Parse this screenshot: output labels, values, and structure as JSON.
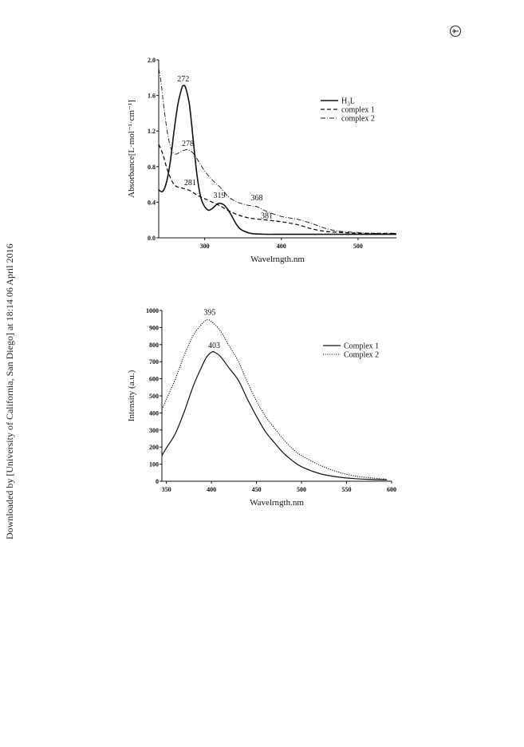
{
  "sidebar": {
    "download_note": "Downloaded by [University of California, San Diego] at 18:14 06 April 2016"
  },
  "header": {
    "logo_icon": "journal-logo-icon"
  },
  "chart_data": [
    {
      "type": "line",
      "ylabel": "Absorbance[L·mol⁻¹·cm⁻¹]",
      "xlabel": "Wavelrngth.nm",
      "xlim": [
        240,
        550
      ],
      "ylim": [
        0,
        2.0
      ],
      "xticks": [
        300,
        400,
        500
      ],
      "yticks": [
        0.0,
        0.4,
        0.8,
        1.2,
        1.6,
        2.0
      ],
      "ytick_labels": [
        "0.0",
        "0.4",
        "0.8",
        "1.2",
        "1.6",
        "2.0"
      ],
      "grid": false,
      "legend_position": "top-right",
      "series": [
        {
          "name": "H3L",
          "legend_main": "H",
          "legend_sub": "3",
          "legend_tail": "L",
          "style": "solid",
          "x": [
            240,
            245,
            250,
            255,
            260,
            265,
            270,
            272,
            275,
            280,
            285,
            290,
            295,
            300,
            305,
            310,
            315,
            319,
            325,
            330,
            335,
            340,
            345,
            350,
            360,
            380,
            400,
            450,
            500,
            550
          ],
          "y": [
            0.54,
            0.52,
            0.62,
            0.85,
            1.2,
            1.5,
            1.68,
            1.71,
            1.69,
            1.5,
            1.1,
            0.7,
            0.45,
            0.35,
            0.31,
            0.33,
            0.37,
            0.39,
            0.37,
            0.32,
            0.25,
            0.17,
            0.11,
            0.08,
            0.05,
            0.04,
            0.04,
            0.04,
            0.04,
            0.04
          ]
        },
        {
          "name": "complex 1",
          "legend_main": "complex 1",
          "style": "dashed",
          "x": [
            240,
            245,
            250,
            255,
            260,
            265,
            270,
            281,
            290,
            300,
            310,
            320,
            330,
            340,
            350,
            360,
            370,
            381,
            400,
            420,
            440,
            460,
            480,
            500,
            520,
            550
          ],
          "y": [
            1.05,
            0.95,
            0.8,
            0.68,
            0.6,
            0.57,
            0.56,
            0.53,
            0.48,
            0.44,
            0.4,
            0.36,
            0.31,
            0.27,
            0.24,
            0.22,
            0.21,
            0.2,
            0.18,
            0.15,
            0.1,
            0.07,
            0.06,
            0.05,
            0.05,
            0.05
          ]
        },
        {
          "name": "complex 2",
          "legend_main": "complex 2",
          "style": "dashdot",
          "x": [
            240,
            243,
            247,
            252,
            257,
            262,
            267,
            272,
            278,
            285,
            292,
            300,
            310,
            320,
            330,
            340,
            350,
            360,
            368,
            380,
            400,
            420,
            440,
            460,
            480,
            500,
            520,
            550
          ],
          "y": [
            1.9,
            1.75,
            1.45,
            1.15,
            0.98,
            0.94,
            0.96,
            0.98,
            0.99,
            0.95,
            0.86,
            0.75,
            0.65,
            0.57,
            0.47,
            0.41,
            0.38,
            0.36,
            0.35,
            0.3,
            0.24,
            0.21,
            0.16,
            0.1,
            0.07,
            0.06,
            0.05,
            0.05
          ]
        }
      ],
      "annotations": [
        {
          "text": "272",
          "x": 272,
          "y": 1.76
        },
        {
          "text": "278",
          "x": 278,
          "y": 1.03
        },
        {
          "text": "281",
          "x": 281,
          "y": 0.59
        },
        {
          "text": "319",
          "x": 319,
          "y": 0.45
        },
        {
          "text": "368",
          "x": 368,
          "y": 0.42
        },
        {
          "text": "381",
          "x": 381,
          "y": 0.22
        }
      ]
    },
    {
      "type": "line",
      "ylabel": "Intensity (a.u.)",
      "xlabel": "Wavelrngth.nm",
      "xlim": [
        345,
        600
      ],
      "ylim": [
        0,
        1000
      ],
      "xticks": [
        350,
        400,
        450,
        500,
        550,
        600
      ],
      "yticks": [
        0,
        100,
        200,
        300,
        400,
        500,
        600,
        700,
        800,
        900,
        1000
      ],
      "grid": false,
      "legend_position": "top-right",
      "series": [
        {
          "name": "Complex 1",
          "legend_main": "Complex 1",
          "style": "solid",
          "x": [
            345,
            350,
            360,
            370,
            380,
            390,
            395,
            400,
            403,
            410,
            420,
            430,
            440,
            450,
            460,
            470,
            480,
            490,
            500,
            520,
            540,
            560,
            580,
            595
          ],
          "y": [
            150,
            195,
            280,
            410,
            560,
            680,
            730,
            755,
            757,
            730,
            660,
            590,
            480,
            380,
            290,
            225,
            165,
            120,
            85,
            45,
            25,
            15,
            10,
            8
          ]
        },
        {
          "name": "Complex 2",
          "legend_main": "Complex 2",
          "style": "dotted",
          "x": [
            345,
            350,
            360,
            370,
            380,
            390,
            395,
            400,
            410,
            420,
            430,
            440,
            450,
            460,
            470,
            480,
            490,
            500,
            520,
            540,
            560,
            580,
            595
          ],
          "y": [
            420,
            480,
            600,
            740,
            855,
            925,
            945,
            935,
            880,
            790,
            700,
            580,
            470,
            380,
            310,
            245,
            190,
            150,
            95,
            55,
            30,
            18,
            12
          ]
        }
      ],
      "annotations": [
        {
          "text": "395",
          "x": 398,
          "y": 975
        },
        {
          "text": "403",
          "x": 403,
          "y": 780
        }
      ]
    }
  ]
}
